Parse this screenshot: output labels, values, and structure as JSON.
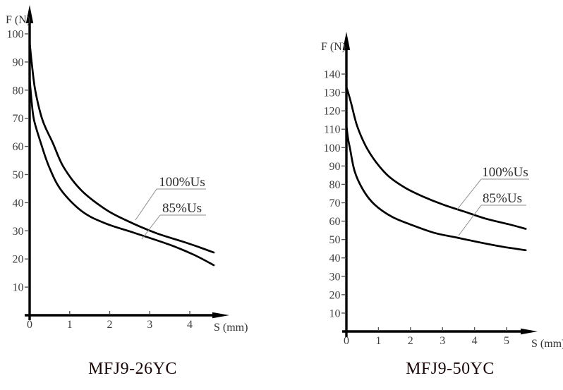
{
  "figure": {
    "background": "#ffffff",
    "description": "Force (F) versus stroke (S) characteristic curves for two solenoid models"
  },
  "chart_data": [
    {
      "type": "line",
      "title": "MFJ9-26YC",
      "title_color": "#1c0708",
      "xlabel": "S (mm)",
      "ylabel": "F (N)",
      "xlim": [
        0,
        5
      ],
      "ylim": [
        0,
        110
      ],
      "xticks": [
        0,
        1,
        2,
        3,
        4
      ],
      "yticks": [
        10,
        20,
        30,
        40,
        50,
        60,
        70,
        80,
        90,
        100
      ],
      "grid": false,
      "legend_position": "inline-callouts",
      "line_color": "#000000",
      "axis_color": "#000000",
      "tick_label_color": "#3f3f3f",
      "annotation_color": "#2d2d2d",
      "leader_color": "#8c8c8c",
      "series": [
        {
          "name": "100%Us",
          "x": [
            0,
            0.05,
            0.14,
            0.32,
            0.58,
            0.85,
            1.29,
            1.9,
            2.43,
            3.14,
            3.84,
            4.25,
            4.6
          ],
          "y": [
            97,
            90,
            80,
            69.4,
            61.2,
            52.6,
            44.4,
            37.6,
            33.6,
            29.3,
            26.1,
            24.1,
            22.3
          ]
        },
        {
          "name": "85%Us",
          "x": [
            0,
            0.05,
            0.11,
            0.28,
            0.49,
            0.79,
            1.32,
            1.9,
            2.61,
            3.49,
            4.1,
            4.6
          ],
          "y": [
            84,
            76,
            69.4,
            61.2,
            52.6,
            44.4,
            36.8,
            32.6,
            29.3,
            25.1,
            21.5,
            17.8
          ]
        }
      ],
      "annotations": [
        {
          "label": "100%Us"
        },
        {
          "label": "85%Us"
        }
      ]
    },
    {
      "type": "line",
      "title": "MFJ9-50YC",
      "title_color": "#1c0708",
      "xlabel": "S (mm)",
      "ylabel": "F (N)",
      "xlim": [
        0,
        6
      ],
      "ylim": [
        0,
        150
      ],
      "xticks": [
        0,
        1,
        2,
        3,
        4,
        5
      ],
      "yticks": [
        10,
        20,
        30,
        40,
        50,
        60,
        70,
        80,
        90,
        100,
        110,
        120,
        130,
        140
      ],
      "grid": false,
      "legend_position": "inline-callouts",
      "line_color": "#000000",
      "axis_color": "#000000",
      "tick_label_color": "#3f3f3f",
      "annotation_color": "#2d2d2d",
      "leader_color": "#8c8c8c",
      "series": [
        {
          "name": "100%Us",
          "x": [
            0,
            0.07,
            0.15,
            0.33,
            0.6,
            0.93,
            1.32,
            1.85,
            2.36,
            3.02,
            3.68,
            4.34,
            5.07,
            5.6
          ],
          "y": [
            133,
            129,
            124,
            112,
            101,
            92,
            84.4,
            78,
            73.6,
            69,
            65.2,
            61.4,
            58.3,
            55.8
          ]
        },
        {
          "name": "85%Us",
          "x": [
            0,
            0.05,
            0.11,
            0.26,
            0.53,
            0.88,
            1.41,
            1.98,
            2.73,
            3.46,
            4.2,
            4.9,
            5.6
          ],
          "y": [
            112,
            105,
            99.7,
            87,
            76.7,
            69,
            62.5,
            58.3,
            53.7,
            51,
            48.3,
            46,
            44.2
          ]
        }
      ],
      "annotations": [
        {
          "label": "100%Us"
        },
        {
          "label": "85%Us"
        }
      ]
    }
  ]
}
